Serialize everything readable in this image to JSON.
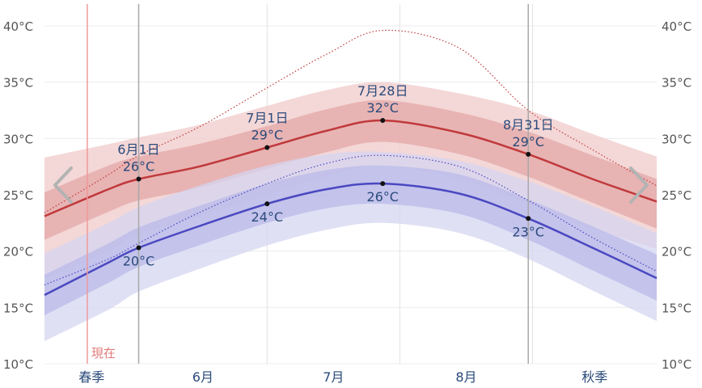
{
  "chart_data": {
    "type": "area",
    "title": "",
    "xlabel": "",
    "ylabel": "",
    "ylim": [
      10,
      40
    ],
    "y_ticks": [
      "10°C",
      "15°C",
      "20°C",
      "25°C",
      "30°C",
      "35°C",
      "40°C"
    ],
    "grid": true,
    "x_range": [
      "05-10",
      "09-30"
    ],
    "months": [
      {
        "label": "春季",
        "start": "05-10",
        "end": "06-01"
      },
      {
        "label": "6月",
        "start": "06-01",
        "end": "07-01"
      },
      {
        "label": "7月",
        "start": "07-01",
        "end": "08-01"
      },
      {
        "label": "8月",
        "start": "08-01",
        "end": "09-01"
      },
      {
        "label": "秋季",
        "start": "09-01",
        "end": "09-30"
      }
    ],
    "vertical_markers": [
      "06-01",
      "08-31"
    ],
    "now": {
      "label": "現在",
      "date": "05-20"
    },
    "x": [
      "05-10",
      "05-25",
      "06-01",
      "06-15",
      "07-01",
      "07-15",
      "07-28",
      "08-15",
      "08-31",
      "09-15",
      "09-30"
    ],
    "series": [
      {
        "name": "",
        "color": "#c0393b",
        "values": [
          23.1,
          25.5,
          26.4,
          27.5,
          29.2,
          30.7,
          31.6,
          30.5,
          28.6,
          26.4,
          24.4
        ],
        "bands": {
          "p25": [
            21.0,
            23.5,
            24.5,
            25.6,
            27.3,
            28.8,
            29.7,
            28.6,
            26.6,
            24.3,
            22.0
          ],
          "p75": [
            25.2,
            27.6,
            28.4,
            29.5,
            31.1,
            32.6,
            33.4,
            32.3,
            30.6,
            28.5,
            26.4
          ],
          "p10": [
            17.5,
            20.0,
            21.5,
            23.0,
            25.0,
            26.6,
            27.6,
            26.4,
            24.2,
            22.0,
            20.2
          ],
          "p90": [
            28.3,
            29.5,
            30.1,
            31.2,
            32.9,
            34.3,
            35.0,
            34.0,
            32.5,
            30.4,
            28.4
          ]
        },
        "max_record": [
          23.4,
          26.8,
          28.5,
          31.0,
          34.5,
          37.5,
          39.6,
          38.0,
          32.5,
          29.0,
          25.8
        ]
      },
      {
        "name": "",
        "color": "#4a48c0",
        "values": [
          16.1,
          19.0,
          20.3,
          22.2,
          24.2,
          25.5,
          26.0,
          25.1,
          22.9,
          20.3,
          17.6
        ],
        "bands": {
          "p25": [
            14.3,
            17.2,
            18.6,
            20.5,
            22.5,
            23.8,
            24.2,
            23.3,
            21.0,
            18.3,
            15.6
          ],
          "p75": [
            17.9,
            20.7,
            22.1,
            24.0,
            26.0,
            27.2,
            27.6,
            26.8,
            24.6,
            22.2,
            19.7
          ],
          "p10": [
            12.0,
            14.8,
            16.4,
            18.4,
            20.5,
            21.9,
            22.5,
            21.6,
            19.3,
            16.5,
            13.8
          ],
          "p90": [
            19.8,
            22.5,
            23.9,
            25.8,
            27.6,
            28.6,
            28.8,
            28.0,
            26.2,
            24.0,
            21.6
          ]
        },
        "max_record": [
          17.0,
          19.3,
          20.7,
          23.4,
          26.0,
          27.8,
          28.5,
          27.5,
          24.5,
          21.2,
          18.2
        ]
      }
    ],
    "annotations": [
      {
        "date": "06-01",
        "label": "6月1日",
        "high": "26°C",
        "low": "20°C",
        "high_value": 26.4,
        "low_value": 20.3
      },
      {
        "date": "07-01",
        "label": "7月1日",
        "high": "29°C",
        "low": "24°C",
        "high_value": 29.2,
        "low_value": 24.2
      },
      {
        "date": "07-28",
        "label": "7月28日",
        "high": "32°C",
        "low": "26°C",
        "high_value": 31.6,
        "low_value": 26.0
      },
      {
        "date": "08-31",
        "label": "8月31日",
        "high": "29°C",
        "low": "23°C",
        "high_value": 28.6,
        "low_value": 22.9
      }
    ]
  },
  "nav": {
    "prev_icon": "chevron-left-icon",
    "next_icon": "chevron-right-icon"
  }
}
